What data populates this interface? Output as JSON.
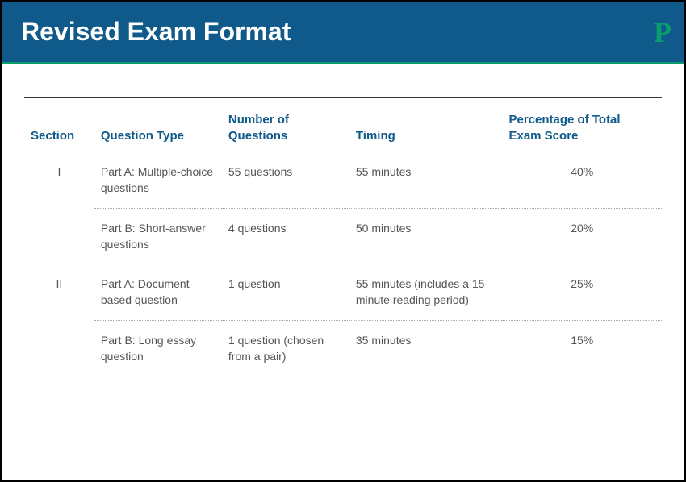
{
  "header": {
    "title": "Revised Exam Format",
    "logo_text": "P",
    "background_color": "#0f5a8a",
    "title_color": "#ffffff",
    "accent_color": "#0a9d6e",
    "title_fontsize": 32
  },
  "table": {
    "header_color": "#0f5a8a",
    "body_text_color": "#555555",
    "border_color": "#333333",
    "dotted_color": "#aaaaaa",
    "columns": [
      {
        "label": "Section",
        "width": "11%"
      },
      {
        "label": "Question Type",
        "width": "20%"
      },
      {
        "label": "Number of Questions",
        "width": "20%"
      },
      {
        "label": "Timing",
        "width": "24%"
      },
      {
        "label": "Percentage of Total Exam Score",
        "width": "25%"
      }
    ],
    "sections": [
      {
        "section_label": "I",
        "parts": [
          {
            "question_type": "Part A: Multiple-choice questions",
            "num_questions": "55 questions",
            "timing": "55 minutes",
            "percentage": "40%"
          },
          {
            "question_type": "Part B: Short-answer questions",
            "num_questions": "4 questions",
            "timing": "50 minutes",
            "percentage": "20%"
          }
        ]
      },
      {
        "section_label": "II",
        "parts": [
          {
            "question_type": "Part A: Document-based question",
            "num_questions": "1 question",
            "timing": "55 minutes (includes a 15-minute reading period)",
            "percentage": "25%"
          },
          {
            "question_type": "Part B: Long essay question",
            "num_questions": "1 question (chosen from a pair)",
            "timing": "35 minutes",
            "percentage": "15%"
          }
        ]
      }
    ]
  }
}
